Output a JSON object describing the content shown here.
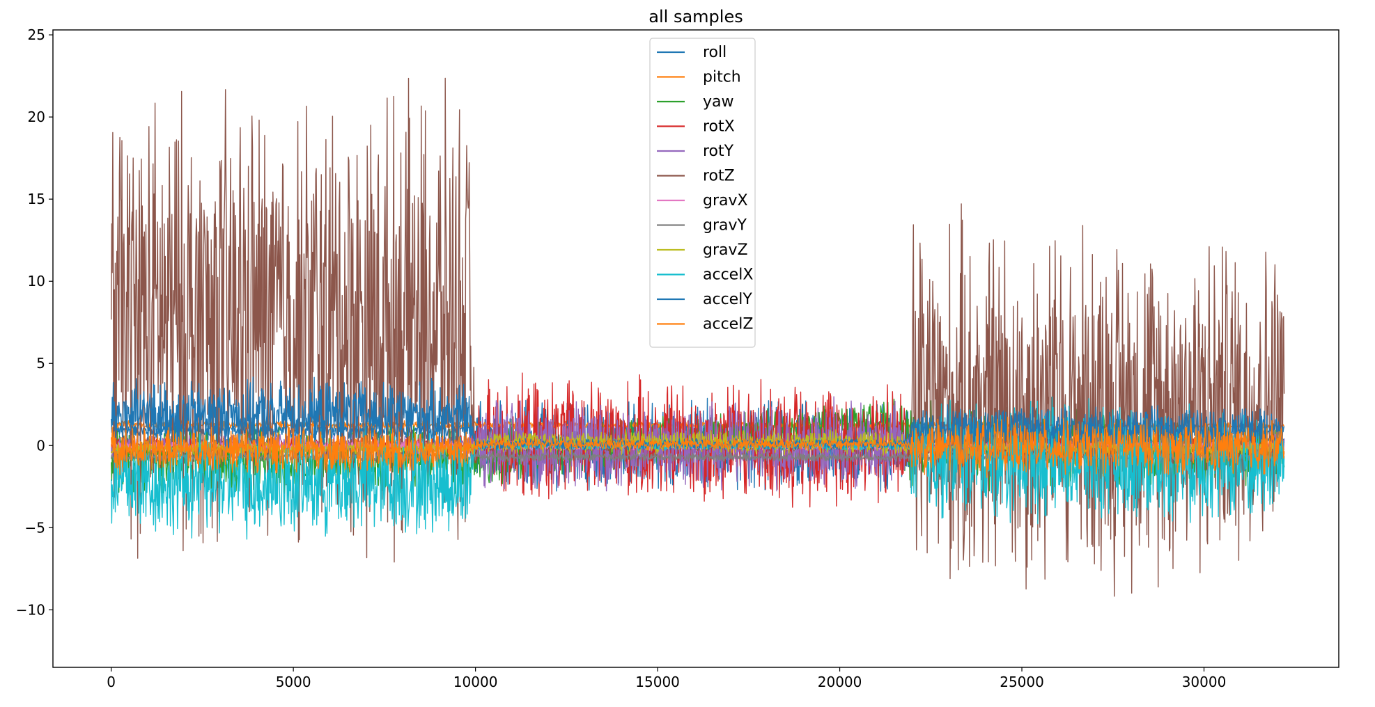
{
  "chart_data": {
    "type": "line",
    "title": "all samples",
    "xlabel": "",
    "ylabel": "",
    "xlim": [
      -1600,
      33700
    ],
    "ylim": [
      -13.5,
      25.3
    ],
    "xticks": [
      0,
      5000,
      10000,
      15000,
      20000,
      25000,
      30000
    ],
    "yticks": [
      -10,
      -5,
      0,
      5,
      10,
      15,
      20,
      25
    ],
    "grid": false,
    "legend_position": "top-center",
    "n_samples": 32200,
    "series": [
      {
        "name": "roll",
        "color": "#1f77b4",
        "envelope": [
          [
            0,
            0.3,
            1.5
          ],
          [
            9800,
            0.3,
            1.5
          ],
          [
            10000,
            -3.1,
            3.1
          ],
          [
            21000,
            -3.1,
            3.1
          ],
          [
            21900,
            -3.1,
            3.1
          ],
          [
            22000,
            0.1,
            0.5
          ],
          [
            32200,
            0.1,
            0.5
          ]
        ]
      },
      {
        "name": "pitch",
        "color": "#ff7f0e",
        "envelope": [
          [
            0,
            1.0,
            1.6
          ],
          [
            32200,
            1.0,
            1.4
          ]
        ]
      },
      {
        "name": "yaw",
        "color": "#2ca02c",
        "envelope": [
          [
            0,
            -3.1,
            1.5
          ],
          [
            9800,
            -3.1,
            1.5
          ],
          [
            21000,
            0.5,
            2.7
          ],
          [
            22000,
            -3.1,
            3.1
          ],
          [
            32200,
            -2.5,
            1.6
          ]
        ]
      },
      {
        "name": "rotX",
        "color": "#d62728",
        "envelope": [
          [
            0,
            -0.6,
            0.6
          ],
          [
            9800,
            -0.6,
            0.6
          ],
          [
            10300,
            -4.0,
            4.5
          ],
          [
            21600,
            -4.0,
            4.5
          ],
          [
            22000,
            -0.6,
            0.6
          ],
          [
            32200,
            -0.6,
            0.6
          ]
        ]
      },
      {
        "name": "rotY",
        "color": "#9467bd",
        "envelope": [
          [
            0,
            -0.8,
            0.8
          ],
          [
            9800,
            -0.8,
            0.8
          ],
          [
            10300,
            -3.0,
            3.0
          ],
          [
            21600,
            -3.0,
            3.0
          ],
          [
            22000,
            -0.8,
            0.8
          ],
          [
            32200,
            -0.8,
            0.8
          ]
        ]
      },
      {
        "name": "rotZ",
        "color": "#8c564b",
        "envelope": [
          [
            0,
            -8.0,
            23.0
          ],
          [
            9800,
            -8.0,
            23.0
          ],
          [
            10000,
            -0.4,
            0.4
          ],
          [
            21900,
            -0.4,
            0.4
          ],
          [
            22000,
            -11.5,
            15.5
          ],
          [
            32200,
            -8.5,
            14.0
          ]
        ]
      },
      {
        "name": "gravX",
        "color": "#e377c2",
        "envelope": [
          [
            0,
            -0.3,
            0.3
          ],
          [
            32200,
            -0.3,
            0.3
          ]
        ]
      },
      {
        "name": "gravY",
        "color": "#7f7f7f",
        "envelope": [
          [
            0,
            -1.0,
            -0.4
          ],
          [
            32200,
            -1.0,
            -0.4
          ]
        ]
      },
      {
        "name": "gravZ",
        "color": "#bcbd22",
        "envelope": [
          [
            0,
            -0.6,
            0.3
          ],
          [
            9800,
            -0.6,
            0.3
          ],
          [
            10300,
            -0.6,
            1.0
          ],
          [
            21600,
            -0.6,
            1.0
          ],
          [
            22000,
            -0.6,
            0.3
          ],
          [
            32200,
            -0.6,
            0.3
          ]
        ]
      },
      {
        "name": "accelX",
        "color": "#17becf",
        "envelope": [
          [
            0,
            -6.0,
            1.5
          ],
          [
            9800,
            -6.0,
            1.5
          ],
          [
            10000,
            -0.3,
            0.3
          ],
          [
            21900,
            -0.3,
            0.3
          ],
          [
            22000,
            -5.0,
            3.5
          ],
          [
            32200,
            -5.0,
            2.5
          ]
        ]
      },
      {
        "name": "accelY",
        "color": "#1f77b4",
        "envelope": [
          [
            0,
            -0.5,
            4.2
          ],
          [
            9800,
            -0.5,
            4.2
          ],
          [
            10000,
            -0.3,
            0.5
          ],
          [
            21900,
            -0.3,
            0.5
          ],
          [
            22000,
            -0.5,
            2.5
          ],
          [
            32200,
            -0.5,
            2.5
          ]
        ]
      },
      {
        "name": "accelZ",
        "color": "#ff7f0e",
        "envelope": [
          [
            0,
            -1.8,
            1.3
          ],
          [
            9800,
            -1.8,
            1.3
          ],
          [
            10000,
            -0.3,
            0.5
          ],
          [
            21900,
            -0.3,
            0.5
          ],
          [
            22000,
            -2.0,
            1.8
          ],
          [
            32200,
            -2.0,
            1.8
          ]
        ]
      }
    ]
  }
}
